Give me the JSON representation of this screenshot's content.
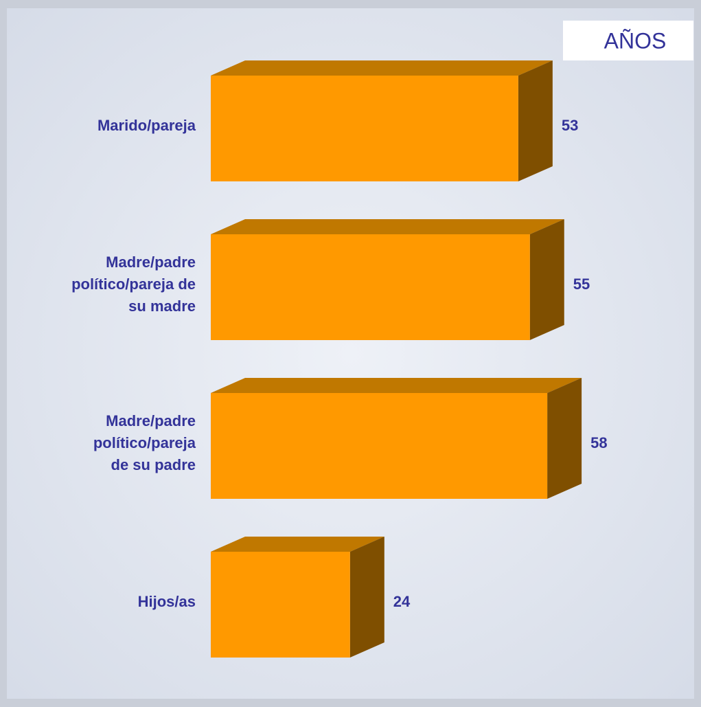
{
  "chart_data": {
    "type": "bar3d-horizontal",
    "title": "AÑOS",
    "categories": [
      "Marido/pareja",
      "Madre/padre\npolítico/pareja de\nsu madre",
      "Madre/padre\npolítico/pareja\nde su padre",
      "Hijos/as"
    ],
    "values": [
      53,
      55,
      58,
      24
    ],
    "color": "#ff9900"
  }
}
